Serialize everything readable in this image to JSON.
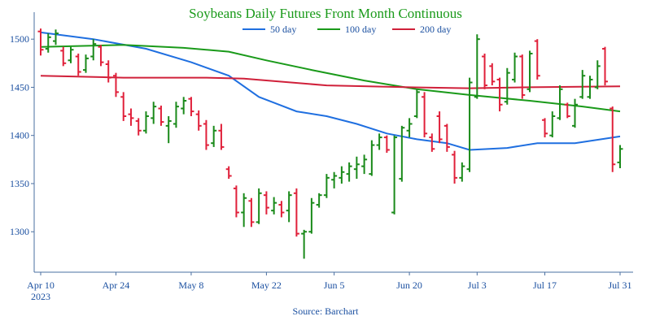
{
  "chart_data": {
    "type": "ohlc",
    "title": "Soybeans Daily Futures Front Month Continuous",
    "source": "Source: Barchart",
    "x": [
      "2023-04-10",
      "2023-04-11",
      "2023-04-12",
      "2023-04-13",
      "2023-04-14",
      "2023-04-17",
      "2023-04-18",
      "2023-04-19",
      "2023-04-20",
      "2023-04-21",
      "2023-04-24",
      "2023-04-25",
      "2023-04-26",
      "2023-04-27",
      "2023-04-28",
      "2023-05-01",
      "2023-05-02",
      "2023-05-03",
      "2023-05-04",
      "2023-05-05",
      "2023-05-08",
      "2023-05-09",
      "2023-05-10",
      "2023-05-11",
      "2023-05-12",
      "2023-05-15",
      "2023-05-16",
      "2023-05-17",
      "2023-05-18",
      "2023-05-19",
      "2023-05-22",
      "2023-05-23",
      "2023-05-24",
      "2023-05-25",
      "2023-05-26",
      "2023-05-30",
      "2023-05-31",
      "2023-06-01",
      "2023-06-02",
      "2023-06-05",
      "2023-06-06",
      "2023-06-07",
      "2023-06-08",
      "2023-06-09",
      "2023-06-12",
      "2023-06-13",
      "2023-06-14",
      "2023-06-15",
      "2023-06-16",
      "2023-06-20",
      "2023-06-21",
      "2023-06-22",
      "2023-06-23",
      "2023-06-26",
      "2023-06-27",
      "2023-06-28",
      "2023-06-29",
      "2023-06-30",
      "2023-07-03",
      "2023-07-05",
      "2023-07-06",
      "2023-07-07",
      "2023-07-10",
      "2023-07-11",
      "2023-07-12",
      "2023-07-13",
      "2023-07-14",
      "2023-07-17",
      "2023-07-18",
      "2023-07-19",
      "2023-07-20",
      "2023-07-21",
      "2023-07-24",
      "2023-07-25",
      "2023-07-26",
      "2023-07-27",
      "2023-07-28",
      "2023-07-31"
    ],
    "open": [
      1508,
      1490,
      1498,
      1488,
      1478,
      1482,
      1468,
      1482,
      1492,
      1474,
      1462,
      1440,
      1422,
      1415,
      1405,
      1418,
      1428,
      1410,
      1412,
      1428,
      1438,
      1422,
      1412,
      1392,
      1405,
      1365,
      1345,
      1320,
      1332,
      1310,
      1338,
      1322,
      1328,
      1322,
      1340,
      1298,
      1300,
      1328,
      1338,
      1354,
      1356,
      1360,
      1365,
      1368,
      1360,
      1390,
      1398,
      1320,
      1355,
      1405,
      1420,
      1440,
      1398,
      1420,
      1410,
      1380,
      1356,
      1365,
      1440,
      1482,
      1472,
      1458,
      1435,
      1458,
      1482,
      1448,
      1498,
      1416,
      1400,
      1418,
      1432,
      1410,
      1440,
      1440,
      1450,
      1490,
      1428,
      1372
    ],
    "high": [
      1511,
      1506,
      1510,
      1492,
      1492,
      1485,
      1484,
      1500,
      1494,
      1478,
      1465,
      1445,
      1428,
      1418,
      1425,
      1435,
      1431,
      1420,
      1435,
      1440,
      1440,
      1426,
      1416,
      1410,
      1412,
      1368,
      1348,
      1340,
      1335,
      1345,
      1342,
      1336,
      1332,
      1342,
      1345,
      1302,
      1335,
      1340,
      1360,
      1362,
      1368,
      1372,
      1378,
      1380,
      1395,
      1402,
      1400,
      1400,
      1410,
      1418,
      1448,
      1445,
      1402,
      1425,
      1412,
      1384,
      1372,
      1460,
      1505,
      1485,
      1475,
      1460,
      1470,
      1486,
      1484,
      1488,
      1500,
      1418,
      1425,
      1452,
      1434,
      1438,
      1468,
      1462,
      1478,
      1492,
      1430,
      1390
    ],
    "low": [
      1483,
      1486,
      1494,
      1472,
      1475,
      1462,
      1465,
      1478,
      1472,
      1455,
      1440,
      1415,
      1410,
      1400,
      1402,
      1412,
      1410,
      1392,
      1408,
      1422,
      1420,
      1405,
      1385,
      1388,
      1385,
      1355,
      1315,
      1305,
      1305,
      1308,
      1318,
      1318,
      1315,
      1310,
      1295,
      1272,
      1298,
      1325,
      1335,
      1345,
      1350,
      1352,
      1355,
      1360,
      1358,
      1385,
      1382,
      1318,
      1352,
      1398,
      1418,
      1398,
      1383,
      1392,
      1383,
      1350,
      1352,
      1362,
      1438,
      1448,
      1452,
      1425,
      1432,
      1455,
      1438,
      1445,
      1458,
      1398,
      1398,
      1416,
      1418,
      1408,
      1438,
      1438,
      1448,
      1452,
      1362,
      1366
    ],
    "close": [
      1489,
      1502,
      1506,
      1475,
      1489,
      1466,
      1480,
      1495,
      1476,
      1460,
      1445,
      1420,
      1418,
      1405,
      1420,
      1430,
      1414,
      1415,
      1430,
      1436,
      1425,
      1410,
      1390,
      1405,
      1388,
      1358,
      1320,
      1335,
      1310,
      1340,
      1325,
      1330,
      1320,
      1338,
      1298,
      1300,
      1330,
      1338,
      1356,
      1358,
      1362,
      1368,
      1370,
      1375,
      1390,
      1398,
      1385,
      1398,
      1408,
      1412,
      1445,
      1402,
      1386,
      1396,
      1388,
      1356,
      1368,
      1455,
      1500,
      1452,
      1456,
      1432,
      1465,
      1482,
      1442,
      1485,
      1462,
      1402,
      1420,
      1448,
      1420,
      1432,
      1462,
      1458,
      1472,
      1456,
      1370,
      1386
    ],
    "up_color": "#1a8a1a",
    "down_color": "#e0203a",
    "lines": [
      {
        "name": "50 day",
        "color": "#1f6fe0",
        "x": [
          "2023-04-10",
          "2023-04-19",
          "2023-04-28",
          "2023-05-08",
          "2023-05-15",
          "2023-05-19",
          "2023-05-26",
          "2023-06-02",
          "2023-06-08",
          "2023-06-14",
          "2023-06-21",
          "2023-06-27",
          "2023-06-30",
          "2023-07-10",
          "2023-07-14",
          "2023-07-21",
          "2023-07-31"
        ],
        "values": [
          1507,
          1500,
          1490,
          1476,
          1462,
          1440,
          1425,
          1420,
          1412,
          1402,
          1396,
          1392,
          1385,
          1387,
          1392,
          1392,
          1399
        ]
      },
      {
        "name": "100 day",
        "color": "#1a9a1a",
        "x": [
          "2023-04-10",
          "2023-04-25",
          "2023-05-05",
          "2023-05-15",
          "2023-05-22",
          "2023-05-31",
          "2023-06-09",
          "2023-06-21",
          "2023-06-30",
          "2023-07-13",
          "2023-07-24",
          "2023-07-31"
        ],
        "values": [
          1492,
          1494,
          1491,
          1487,
          1478,
          1468,
          1457,
          1448,
          1442,
          1436,
          1430,
          1425
        ]
      },
      {
        "name": "200 day",
        "color": "#d0203a",
        "x": [
          "2023-04-10",
          "2023-04-25",
          "2023-05-10",
          "2023-05-17",
          "2023-06-02",
          "2023-06-20",
          "2023-06-30",
          "2023-07-13",
          "2023-07-31"
        ],
        "values": [
          1462,
          1460,
          1460,
          1459,
          1452,
          1450,
          1449,
          1450,
          1451
        ]
      }
    ],
    "ylim": [
      1258,
      1528
    ],
    "yticks": [
      1300,
      1350,
      1400,
      1450,
      1500
    ],
    "xticks": [
      {
        "value": "2023-04-10",
        "label": "Apr 10\n2023"
      },
      {
        "value": "2023-04-24",
        "label": "Apr 24"
      },
      {
        "value": "2023-05-08",
        "label": "May 8"
      },
      {
        "value": "2023-05-22",
        "label": "May 22"
      },
      {
        "value": "2023-06-05",
        "label": "Jun 5"
      },
      {
        "value": "2023-06-20",
        "label": "Jun 20"
      },
      {
        "value": "2023-07-03",
        "label": "Jul 3"
      },
      {
        "value": "2023-07-17",
        "label": "Jul 17"
      },
      {
        "value": "2023-07-31",
        "label": "Jul 31"
      }
    ]
  }
}
